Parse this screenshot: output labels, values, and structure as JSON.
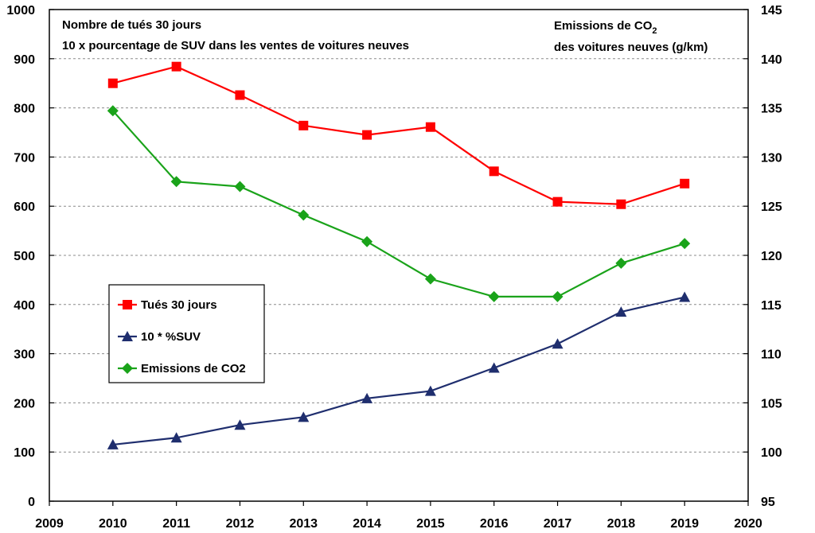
{
  "chart_data": {
    "type": "line",
    "x_axis": {
      "min": 2009,
      "max": 2020,
      "step": 1
    },
    "y_left": {
      "min": 0,
      "max": 1000,
      "step": 100
    },
    "y_right": {
      "min": 95,
      "max": 145,
      "step": 5
    },
    "grid": "horizontal-dashed",
    "annotations": {
      "left_line1": "Nombre de tués  30 jours",
      "left_line2": "10 x pourcentage  de SUV dans  les ventes de voitures neuves",
      "right_line1": "Emissions de CO",
      "right_line1_sub": "2",
      "right_line2": "des voitures neuves (g/km)"
    },
    "legend": {
      "position": "middle-left"
    },
    "series": [
      {
        "name": "Tués 30 jours",
        "axis": "left",
        "color": "#ff0000",
        "marker": "square",
        "x": [
          2010,
          2011,
          2012,
          2013,
          2014,
          2015,
          2016,
          2017,
          2018,
          2019
        ],
        "values": [
          850,
          884,
          826,
          764,
          745,
          761,
          671,
          609,
          604,
          646
        ]
      },
      {
        "name": "10 * %SUV",
        "axis": "left",
        "color": "#1f2e6e",
        "marker": "triangle",
        "x": [
          2010,
          2011,
          2012,
          2013,
          2014,
          2015,
          2016,
          2017,
          2018,
          2019
        ],
        "values": [
          115,
          129,
          155,
          171,
          209,
          224,
          271,
          320,
          385,
          415
        ]
      },
      {
        "name": "Emissions de CO2",
        "axis": "right",
        "color": "#1aa31a",
        "marker": "diamond",
        "x": [
          2010,
          2011,
          2012,
          2013,
          2014,
          2015,
          2016,
          2017,
          2018,
          2019
        ],
        "values": [
          134.7,
          127.5,
          127.0,
          124.1,
          121.4,
          117.6,
          115.8,
          115.8,
          119.2,
          121.2
        ]
      }
    ]
  }
}
